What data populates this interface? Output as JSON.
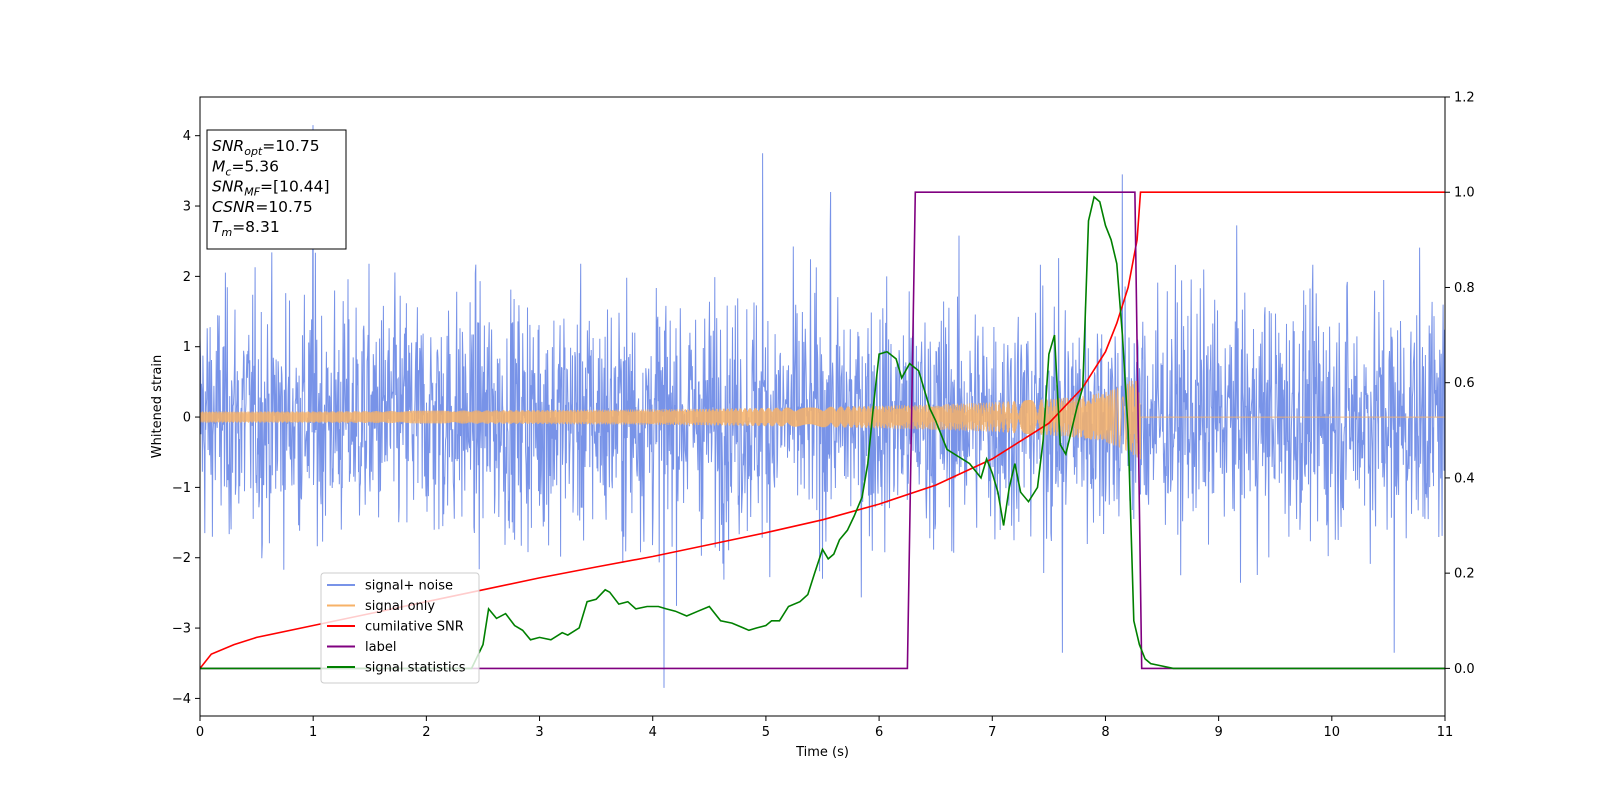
{
  "chart_data": {
    "type": "line",
    "xlabel": "Time (s)",
    "ylabel": "Whitened strain",
    "xlim": [
      0,
      11
    ],
    "ylim_left": [
      -4.25,
      4.55
    ],
    "ylim_right": [
      -0.1,
      1.2
    ],
    "x_ticks": [
      0,
      1,
      2,
      3,
      4,
      5,
      6,
      7,
      8,
      9,
      10,
      11
    ],
    "y_ticks_left": [
      -4,
      -3,
      -2,
      -1,
      0,
      1,
      2,
      3,
      4
    ],
    "y_ticks_right": [
      "0.0",
      "0.2",
      "0.4",
      "0.6",
      "0.8",
      "1.0",
      "1.2"
    ],
    "grid": false,
    "legend_position": "lower-left",
    "annotations": [
      {
        "base": "SNR",
        "sub": "opt",
        "value": "=10.75"
      },
      {
        "base": "M",
        "sub": "c",
        "value": "=5.36"
      },
      {
        "base": "SNR",
        "sub": "MF",
        "value": "=[10.44]"
      },
      {
        "base": "CSNR",
        "sub": "",
        "value": "=10.75"
      },
      {
        "base": "T",
        "sub": "m",
        "value": "=8.31"
      }
    ],
    "merger_time": 8.31,
    "series": [
      {
        "name": "signal+ noise",
        "axis": "left",
        "color": "#7893e8",
        "kind": "noise",
        "typical_amplitude": [
          -2.2,
          2.4
        ],
        "sample_extremes": [
          [
            1.0,
            4.15
          ],
          [
            4.97,
            3.75
          ],
          [
            5.57,
            3.2
          ],
          [
            8.15,
            3.45
          ],
          [
            4.1,
            -3.85
          ],
          [
            7.62,
            -3.35
          ],
          [
            10.55,
            -3.35
          ]
        ]
      },
      {
        "name": "signal only",
        "axis": "left",
        "color": "#f7b267",
        "kind": "chirp",
        "envelope": {
          "t": [
            0,
            1,
            2,
            3,
            4,
            5,
            6,
            6.5,
            7,
            7.5,
            7.8,
            8.0,
            8.15,
            8.25,
            8.31
          ],
          "amp": [
            0.08,
            0.08,
            0.09,
            0.1,
            0.11,
            0.13,
            0.16,
            0.18,
            0.21,
            0.26,
            0.3,
            0.36,
            0.45,
            0.55,
            0.6
          ]
        }
      },
      {
        "name": "cumilative SNR",
        "axis": "right",
        "color": "#ff0000",
        "x": [
          0,
          0.1,
          0.3,
          0.5,
          1,
          1.5,
          2,
          2.5,
          3,
          3.5,
          4,
          4.5,
          5,
          5.5,
          6,
          6.5,
          7,
          7.5,
          7.8,
          8.0,
          8.1,
          8.2,
          8.28,
          8.31,
          8.32,
          9,
          10,
          11
        ],
        "y": [
          0,
          0.03,
          0.05,
          0.065,
          0.09,
          0.115,
          0.14,
          0.165,
          0.19,
          0.213,
          0.235,
          0.26,
          0.285,
          0.312,
          0.345,
          0.385,
          0.44,
          0.515,
          0.59,
          0.665,
          0.725,
          0.8,
          0.9,
          1.0,
          1.0,
          1.0,
          1.0,
          1.0
        ]
      },
      {
        "name": "label",
        "axis": "right",
        "color": "#800080",
        "x": [
          0,
          6.25,
          6.32,
          8.26,
          8.32,
          11
        ],
        "y": [
          0,
          0,
          1,
          1,
          0,
          0
        ]
      },
      {
        "name": "signal statistics",
        "axis": "right",
        "color": "#008000",
        "x": [
          0,
          2.4,
          2.5,
          2.55,
          2.62,
          2.7,
          2.78,
          2.85,
          2.92,
          3.0,
          3.1,
          3.2,
          3.25,
          3.35,
          3.42,
          3.5,
          3.58,
          3.62,
          3.7,
          3.78,
          3.85,
          3.95,
          4.05,
          4.12,
          4.2,
          4.3,
          4.4,
          4.5,
          4.6,
          4.7,
          4.8,
          4.85,
          4.92,
          5.0,
          5.05,
          5.12,
          5.2,
          5.3,
          5.37,
          5.43,
          5.5,
          5.55,
          5.6,
          5.65,
          5.72,
          5.78,
          5.85,
          5.9,
          5.95,
          6.0,
          6.07,
          6.15,
          6.2,
          6.27,
          6.35,
          6.45,
          6.5,
          6.6,
          6.7,
          6.8,
          6.9,
          6.95,
          7.0,
          7.05,
          7.1,
          7.15,
          7.2,
          7.25,
          7.32,
          7.4,
          7.45,
          7.5,
          7.55,
          7.6,
          7.65,
          7.7,
          7.75,
          7.8,
          7.85,
          7.9,
          7.95,
          8.0,
          8.05,
          8.1,
          8.15,
          8.2,
          8.25,
          8.3,
          8.35,
          8.4,
          8.5,
          8.6,
          8.7,
          9,
          11
        ],
        "y": [
          0,
          0.0,
          0.05,
          0.125,
          0.105,
          0.115,
          0.09,
          0.08,
          0.06,
          0.065,
          0.06,
          0.075,
          0.07,
          0.085,
          0.14,
          0.145,
          0.165,
          0.16,
          0.135,
          0.14,
          0.125,
          0.13,
          0.13,
          0.125,
          0.12,
          0.11,
          0.12,
          0.13,
          0.1,
          0.095,
          0.085,
          0.08,
          0.085,
          0.09,
          0.1,
          0.1,
          0.13,
          0.14,
          0.155,
          0.2,
          0.25,
          0.23,
          0.24,
          0.27,
          0.29,
          0.32,
          0.36,
          0.43,
          0.55,
          0.66,
          0.665,
          0.65,
          0.61,
          0.64,
          0.625,
          0.545,
          0.52,
          0.46,
          0.445,
          0.43,
          0.4,
          0.44,
          0.41,
          0.37,
          0.3,
          0.38,
          0.43,
          0.37,
          0.35,
          0.38,
          0.48,
          0.66,
          0.7,
          0.47,
          0.45,
          0.5,
          0.55,
          0.59,
          0.94,
          0.99,
          0.98,
          0.93,
          0.9,
          0.85,
          0.7,
          0.5,
          0.1,
          0.05,
          0.02,
          0.01,
          0.005,
          0.0,
          0.0,
          0.0,
          0.0
        ]
      }
    ]
  }
}
